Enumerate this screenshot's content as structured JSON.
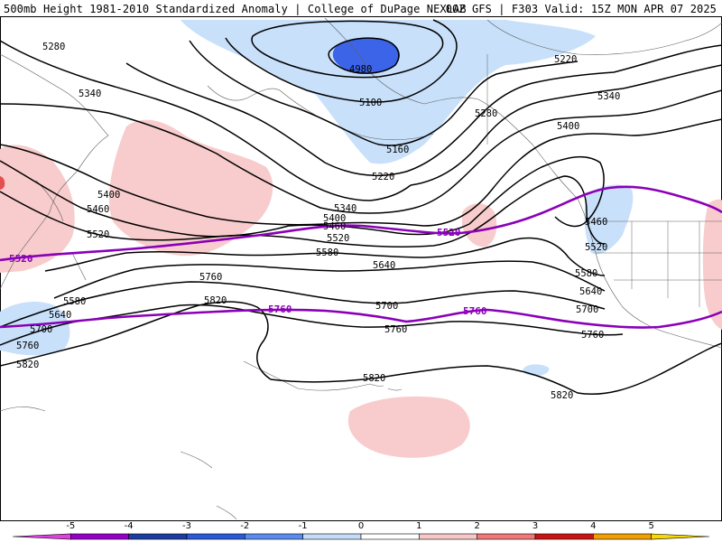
{
  "header": {
    "left": "500mb Height 1981-2010 Standardized Anomaly | College of DuPage NEXLAB",
    "right": "00Z GFS | F303 Valid: 15Z MON APR 07 2025"
  },
  "contour_labels": {
    "c4980": "4980",
    "c5100": "5100",
    "c5160": "5160",
    "c5220a": "5220",
    "c5220b": "5220",
    "c5280a": "5280",
    "c5280b": "5280",
    "c5340a": "5340",
    "c5340b": "5340",
    "c5340c": "5340",
    "c5400a": "5400",
    "c5400b": "5400",
    "c5400c": "5400",
    "c5460a": "5460",
    "c5460b": "5460",
    "c5460c": "5460",
    "c5520a": "5520",
    "c5520b": "5520",
    "c5520c": "5520",
    "c5580a": "5580",
    "c5580b": "5580",
    "c5580c": "5580",
    "c5640a": "5640",
    "c5640b": "5640",
    "c5640c": "5640",
    "c5700a": "5700",
    "c5700b": "5700",
    "c5700c": "5700",
    "c5760a": "5760",
    "c5760b": "5760",
    "c5760c": "5760",
    "c5760d": "5760",
    "c5820a": "5820",
    "c5820b": "5820",
    "c5820c": "5820",
    "c5820d": "5820"
  },
  "reference_lines": {
    "p5520a": "5520",
    "p5520b": "5520",
    "p5760a": "5760",
    "p5760b": "5760"
  },
  "colorbar": {
    "ticks": [
      "-5",
      "-4",
      "-3",
      "-2",
      "-1",
      "0",
      "1",
      "2",
      "3",
      "4",
      "5"
    ],
    "colors": [
      "#e040e0",
      "#9400c8",
      "#1c3ca0",
      "#2a5ad8",
      "#5a8cf0",
      "#c4dcf8",
      "#ffffff",
      "#f8c8c8",
      "#f07878",
      "#c81414",
      "#f0a000",
      "#f8d800"
    ]
  },
  "colors": {
    "reference_line": "#8a00b8",
    "negative_anomaly_1": "#c8e0fa",
    "negative_anomaly_2": "#3c64e8",
    "positive_anomaly_1": "#f8cccc",
    "positive_anomaly_2": "#e45050"
  }
}
